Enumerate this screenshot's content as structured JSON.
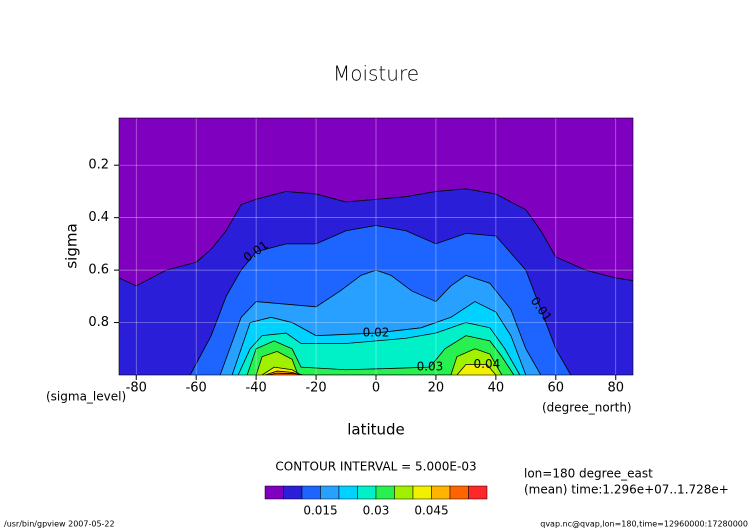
{
  "chart_data": {
    "type": "contour",
    "title": "Moisture",
    "x_label": "latitude",
    "y_label": "sigma",
    "x_unit": "(degree_north)",
    "y_unit": "(sigma_level)",
    "xlim": [
      -85.76,
      85.76
    ],
    "xticks": [
      -80,
      -60,
      -40,
      -20,
      0,
      20,
      40,
      60,
      80
    ],
    "ylim": [
      1,
      0.02
    ],
    "yticks": [
      0.2,
      0.4,
      0.6,
      0.8
    ],
    "grid": true,
    "contour_interval_text": "CONTOUR INTERVAL = 5.000E-03",
    "colorbar": {
      "levels": [
        0,
        0.005,
        0.01,
        0.015,
        0.02,
        0.025,
        0.03,
        0.035,
        0.04,
        0.045,
        0.05,
        0.055,
        0.06
      ],
      "colors": [
        "#8000c0",
        "#2a1ed8",
        "#1e64ff",
        "#28a0ff",
        "#00d2ff",
        "#00f0c8",
        "#28f050",
        "#a0f000",
        "#f0f000",
        "#ffb400",
        "#ff6400",
        "#ff2828"
      ],
      "ticks": [
        0.015,
        0.03,
        0.045
      ]
    },
    "contours": [
      {
        "level": 0.005,
        "x": [
          -85.76,
          -80,
          -70,
          -60,
          -55,
          -50,
          -45,
          -40,
          -30,
          -20,
          -10,
          0,
          10,
          20,
          30,
          40,
          50,
          55,
          60,
          70,
          80,
          85.76
        ],
        "y": [
          0.63,
          0.66,
          0.6,
          0.57,
          0.52,
          0.45,
          0.35,
          0.33,
          0.3,
          0.31,
          0.34,
          0.33,
          0.32,
          0.3,
          0.29,
          0.31,
          0.37,
          0.45,
          0.55,
          0.6,
          0.63,
          0.64
        ]
      },
      {
        "level": 0.01,
        "x": [
          -62,
          -55,
          -50,
          -45,
          -40,
          -30,
          -20,
          -10,
          0,
          10,
          20,
          30,
          40,
          50,
          55,
          60,
          65
        ],
        "y": [
          1,
          0.85,
          0.7,
          0.6,
          0.53,
          0.5,
          0.5,
          0.45,
          0.43,
          0.45,
          0.5,
          0.46,
          0.47,
          0.6,
          0.75,
          0.9,
          1
        ]
      },
      {
        "level": 0.015,
        "x": [
          -52,
          -45,
          -40,
          -30,
          -20,
          -12,
          -5,
          0,
          5,
          12,
          20,
          25,
          30,
          38,
          45,
          50,
          55
        ],
        "y": [
          1,
          0.78,
          0.72,
          0.73,
          0.74,
          0.68,
          0.62,
          0.6,
          0.62,
          0.68,
          0.72,
          0.66,
          0.62,
          0.65,
          0.75,
          0.9,
          1
        ]
      },
      {
        "level": 0.02,
        "x": [
          -48,
          -42,
          -35,
          -28,
          -20,
          0,
          15,
          25,
          33,
          40,
          45,
          50
        ],
        "y": [
          1,
          0.8,
          0.78,
          0.8,
          0.85,
          0.84,
          0.82,
          0.78,
          0.72,
          0.76,
          0.85,
          1
        ]
      },
      {
        "level": 0.025,
        "x": [
          -46,
          -42,
          -38,
          -30,
          -25,
          -10,
          0,
          10,
          20,
          30,
          38,
          43,
          48
        ],
        "y": [
          1,
          0.9,
          0.85,
          0.84,
          0.88,
          0.88,
          0.87,
          0.86,
          0.84,
          0.8,
          0.82,
          0.9,
          1
        ]
      },
      {
        "level": 0.03,
        "x": [
          -43,
          -40,
          -34,
          -28,
          -25,
          -10,
          5,
          18,
          23,
          30,
          38,
          42,
          46
        ],
        "y": [
          1,
          0.9,
          0.87,
          0.9,
          0.97,
          0.98,
          0.975,
          0.97,
          0.9,
          0.85,
          0.87,
          0.93,
          1
        ]
      },
      {
        "level": 0.035,
        "x": [
          -40,
          -38,
          -33,
          -28,
          -26,
          25,
          27,
          33,
          38,
          42
        ],
        "y": [
          1,
          0.93,
          0.91,
          0.94,
          1,
          1,
          0.93,
          0.9,
          0.92,
          1
        ]
      },
      {
        "level": 0.04,
        "x": [
          -38,
          -34,
          -28,
          -25,
          null,
          27,
          30,
          37,
          40
        ],
        "y": [
          1,
          0.97,
          0.98,
          1,
          null,
          1,
          0.96,
          0.96,
          1
        ]
      },
      {
        "level": 0.045,
        "x": [
          -37,
          -33,
          -28,
          -25
        ],
        "y": [
          1,
          0.985,
          0.99,
          1
        ]
      },
      {
        "level": 0.05,
        "x": [
          -36,
          -33,
          -27,
          -24
        ],
        "y": [
          1,
          0.993,
          0.995,
          1
        ]
      }
    ],
    "info_lines": [
      "lon=180 degree_east",
      "(mean) time:1.296e+07..1.728e+"
    ],
    "footer_left": "/usr/bin/gpview  2007-05-22",
    "footer_right": "qvap.nc@qvap,lon=180,time=12960000:17280000"
  }
}
